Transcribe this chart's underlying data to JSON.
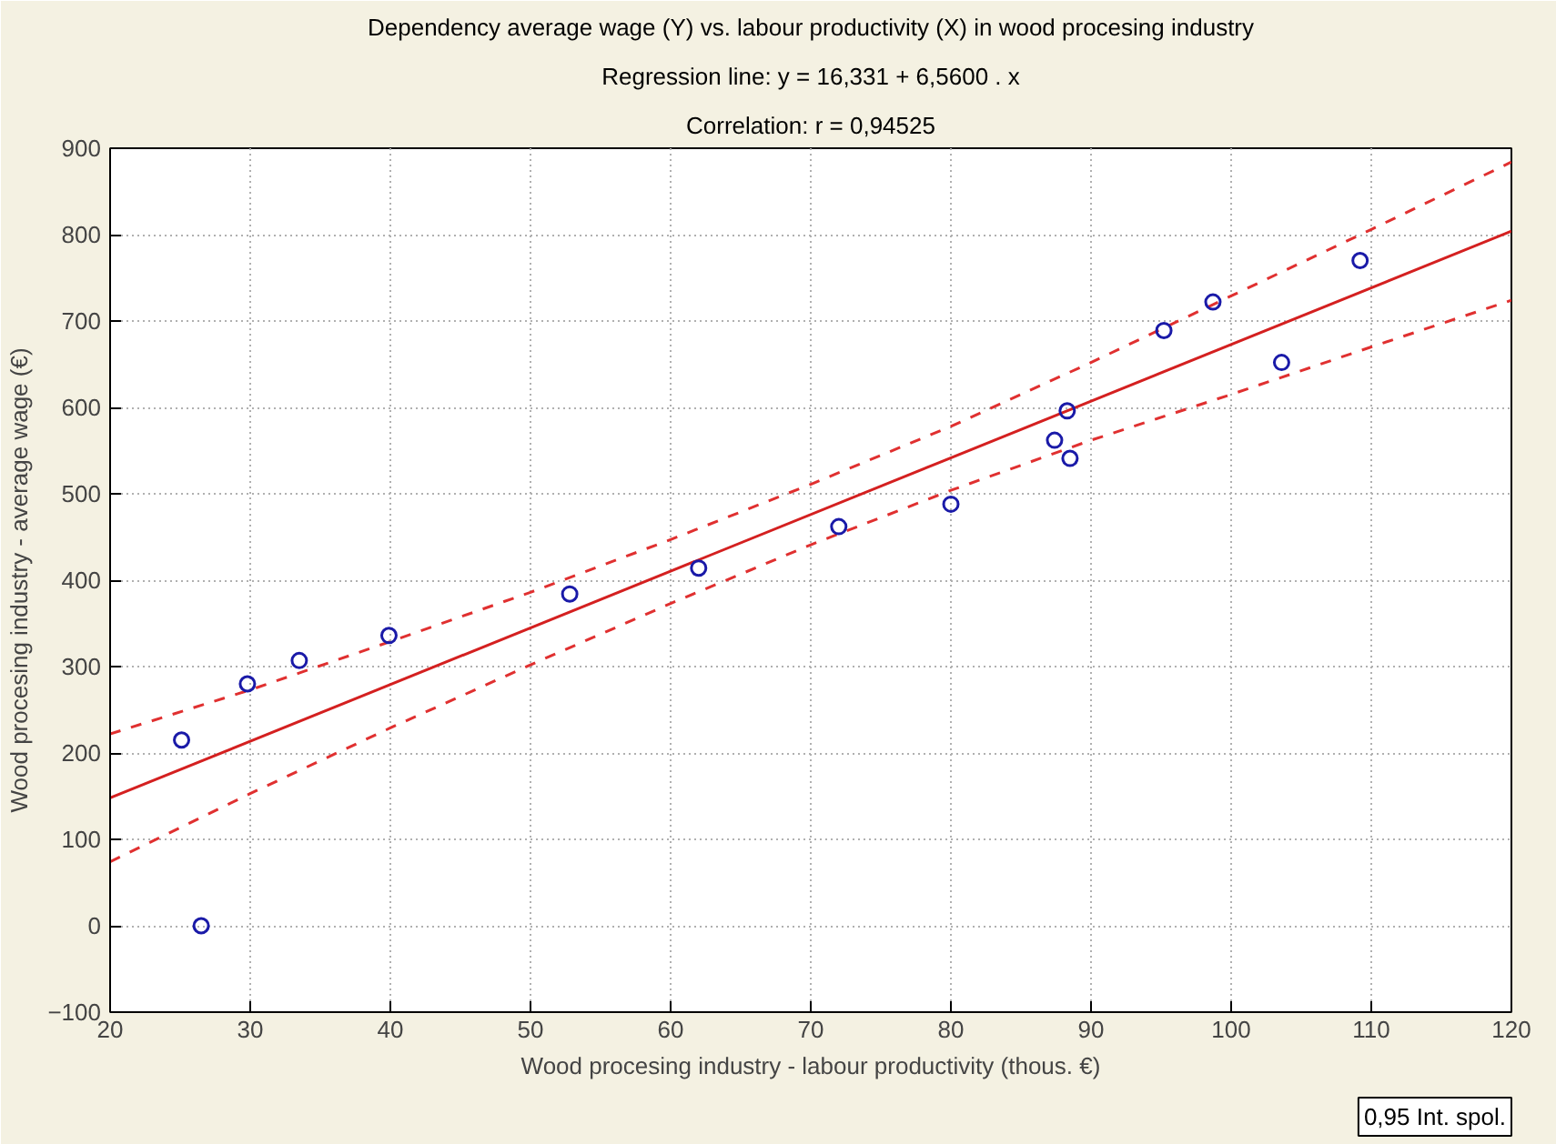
{
  "chart_data": {
    "type": "scatter",
    "title": "Dependency average wage (Y) vs. labour productivity (X) in wood procesing industry",
    "subtitle": "Regression line: y = 16,331 + 6,5600 . x",
    "annotations": [
      "Correlation: r = 0,94525",
      "0,95 Int. spol."
    ],
    "xlabel": "Wood procesing industry - labour productivity (thous. €)",
    "ylabel": "Wood procesing industry - average wage (€)",
    "xlim": [
      20,
      120
    ],
    "xticks": [
      20,
      30,
      40,
      50,
      60,
      70,
      80,
      90,
      100,
      110,
      120
    ],
    "ylim": [
      -100,
      900
    ],
    "yticks": [
      -100,
      0,
      100,
      200,
      300,
      400,
      500,
      600,
      700,
      800,
      900
    ],
    "grid": true,
    "marker": "circle",
    "series": [
      {
        "type": "line",
        "marker": "none",
        "line_style": "dashed",
        "color": "#e03030",
        "x": [
          20,
          30,
          40,
          50,
          60,
          70,
          80,
          90,
          100,
          110,
          120
        ],
        "values": [
          222,
          273,
          329,
          386,
          447,
          511,
          578,
          652,
          729,
          806,
          884
        ]
      },
      {
        "type": "line",
        "marker": "none",
        "line_style": "dashed",
        "color": "#e03030",
        "x": [
          20,
          30,
          40,
          50,
          60,
          70,
          80,
          90,
          100,
          110,
          120
        ],
        "values": [
          74,
          153,
          229,
          302,
          373,
          441,
          504,
          562,
          615,
          670,
          724
        ]
      },
      {
        "type": "line",
        "marker": "none",
        "line_style": "solid",
        "color": "#d42020",
        "x": [
          20,
          120
        ],
        "values": [
          148,
          804
        ]
      },
      {
        "color": "#1a1aa8",
        "x": [
          25.1,
          26.5,
          29.8,
          33.5,
          39.9,
          52.8,
          62.0,
          72.0,
          80.0,
          87.4,
          88.3,
          88.5,
          95.2,
          98.7,
          103.6,
          109.2
        ],
        "values": [
          215,
          0,
          280,
          307,
          336,
          384,
          414,
          462,
          488,
          562,
          596,
          541,
          689,
          722,
          652,
          770
        ]
      }
    ]
  }
}
